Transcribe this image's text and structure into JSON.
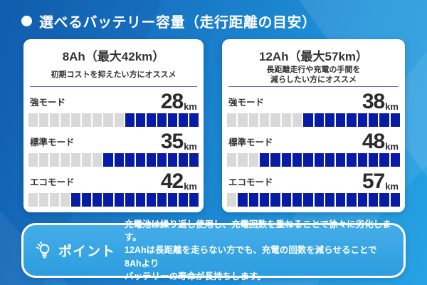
{
  "header": {
    "title": "選べるバッテリー容量（走行距離の目安）"
  },
  "cards": [
    {
      "title": "8Ah（最大42km）",
      "subtitle": "初期コストを抑えたい方にオススメ",
      "rows": [
        {
          "mode": "強モード",
          "value": "28",
          "unit": "km",
          "filled": 7,
          "total": 16
        },
        {
          "mode": "標準モード",
          "value": "35",
          "unit": "km",
          "filled": 9,
          "total": 16
        },
        {
          "mode": "エコモード",
          "value": "42",
          "unit": "km",
          "filled": 12,
          "total": 16
        }
      ]
    },
    {
      "title": "12Ah（最大57km）",
      "subtitle": "長距離走行や充電の手間を\n減らしたい方にオススメ",
      "rows": [
        {
          "mode": "強モード",
          "value": "38",
          "unit": "km",
          "filled": 9,
          "total": 16
        },
        {
          "mode": "標準モード",
          "value": "48",
          "unit": "km",
          "filled": 13,
          "total": 16
        },
        {
          "mode": "エコモード",
          "value": "57",
          "unit": "km",
          "filled": 15,
          "total": 16
        }
      ]
    }
  ],
  "point": {
    "icon": "lightbulb-icon",
    "label": "ポイント",
    "text": "充電池は繰り返し使用し、充電回数を重ねることで徐々に劣化します。\n12Ahは長距離を走らない方でも、充電の回数を減らせることで8Ahより\nバッテリーの寿命が長持ちします。"
  },
  "colors": {
    "background_start": "#1261b2",
    "background_end": "#26a2e3",
    "card_bg": "#ffffff",
    "segment_filled": "#081ba5",
    "segment_empty": "#d9d9d9",
    "divider": "#5a68b8",
    "text_dark": "#333333",
    "text_white": "#ffffff",
    "point_box_bg": "#35a3e2"
  },
  "chart_data": {
    "type": "bar",
    "title": "選べるバッテリー容量（走行距離の目安）",
    "categories": [
      "強モード",
      "標準モード",
      "エコモード"
    ],
    "series": [
      {
        "name": "8Ah（最大42km）",
        "values": [
          28,
          35,
          42
        ]
      },
      {
        "name": "12Ah（最大57km）",
        "values": [
          38,
          48,
          57
        ]
      }
    ],
    "unit": "km",
    "ylim": [
      0,
      57
    ],
    "segments_per_bar": 16,
    "segments_filled": {
      "8Ah": [
        7,
        9,
        12
      ],
      "12Ah": [
        9,
        13,
        15
      ]
    },
    "notes": "segmented gauge bars, filled from the right side in dark blue"
  }
}
